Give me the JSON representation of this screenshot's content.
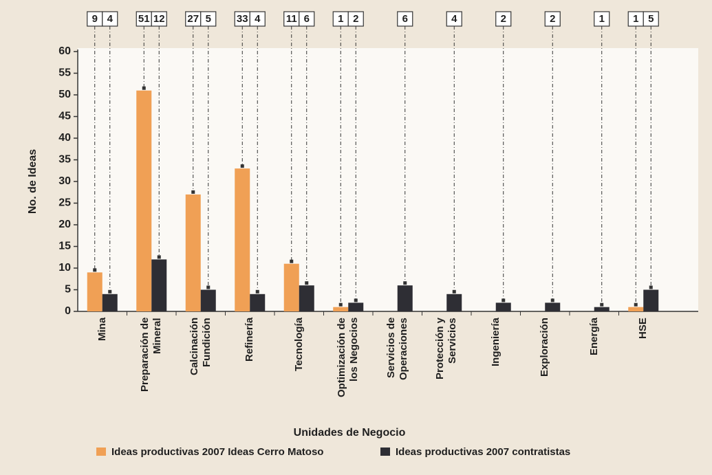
{
  "chart_data": {
    "type": "bar",
    "x_label": "Unidades de Negocio",
    "y_label": "No. de Ideas",
    "categories": [
      "Mina",
      "Preparación de Mineral",
      "Calcinación Fundición",
      "Refinería",
      "Tecnología",
      "Optimización de los Negocios",
      "Servicios de Operaciones",
      "Protección y Servicios",
      "Ingeniería",
      "Exploración",
      "Energía",
      "HSE"
    ],
    "series": [
      {
        "name": "Ideas productivas 2007 Ideas Cerro Matoso",
        "color": "#f0a055",
        "values": [
          9,
          51,
          27,
          33,
          11,
          1,
          null,
          null,
          null,
          null,
          null,
          1
        ]
      },
      {
        "name": "Ideas productivas 2007 contratistas",
        "color": "#2e2e34",
        "values": [
          4,
          12,
          5,
          4,
          6,
          2,
          6,
          4,
          2,
          2,
          1,
          5
        ]
      }
    ],
    "ylim": [
      0,
      60
    ],
    "yticks": [
      0,
      5,
      10,
      15,
      20,
      25,
      30,
      35,
      40,
      45,
      50,
      55,
      60
    ],
    "legend": "bottom"
  }
}
